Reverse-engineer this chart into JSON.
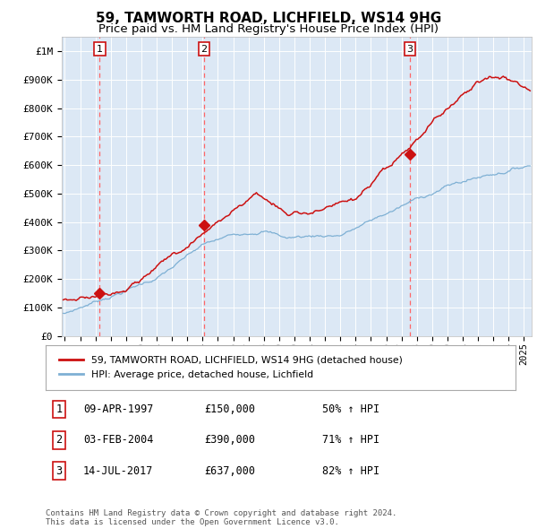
{
  "title": "59, TAMWORTH ROAD, LICHFIELD, WS14 9HG",
  "subtitle": "Price paid vs. HM Land Registry's House Price Index (HPI)",
  "ylabel_values": [
    "£0",
    "£100K",
    "£200K",
    "£300K",
    "£400K",
    "£500K",
    "£600K",
    "£700K",
    "£800K",
    "£900K",
    "£1M"
  ],
  "yticks": [
    0,
    100000,
    200000,
    300000,
    400000,
    500000,
    600000,
    700000,
    800000,
    900000,
    1000000
  ],
  "xlim_start": 1994.8,
  "xlim_end": 2025.5,
  "ylim_min": 0,
  "ylim_max": 1050000,
  "sale_dates": [
    1997.27,
    2004.09,
    2017.54
  ],
  "sale_prices": [
    150000,
    390000,
    637000
  ],
  "sale_labels": [
    "1",
    "2",
    "3"
  ],
  "hpi_line_color": "#7eb0d4",
  "price_line_color": "#cc1111",
  "dashed_line_color": "#ff6666",
  "plot_bg_color": "#dce8f5",
  "legend1_label": "59, TAMWORTH ROAD, LICHFIELD, WS14 9HG (detached house)",
  "legend2_label": "HPI: Average price, detached house, Lichfield",
  "table_rows": [
    [
      "1",
      "09-APR-1997",
      "£150,000",
      "50% ↑ HPI"
    ],
    [
      "2",
      "03-FEB-2004",
      "£390,000",
      "71% ↑ HPI"
    ],
    [
      "3",
      "14-JUL-2017",
      "£637,000",
      "82% ↑ HPI"
    ]
  ],
  "footer_text": "Contains HM Land Registry data © Crown copyright and database right 2024.\nThis data is licensed under the Open Government Licence v3.0.",
  "title_fontsize": 11,
  "subtitle_fontsize": 9.5,
  "axis_fontsize": 8,
  "tick_fontsize": 7.5
}
